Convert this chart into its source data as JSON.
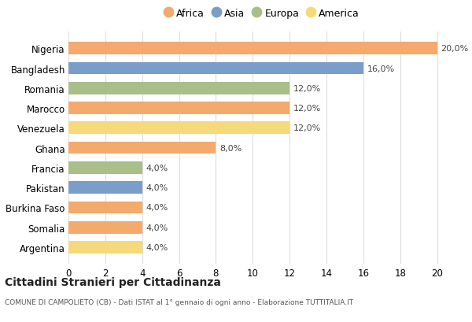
{
  "countries": [
    "Nigeria",
    "Bangladesh",
    "Romania",
    "Marocco",
    "Venezuela",
    "Ghana",
    "Francia",
    "Pakistan",
    "Burkina Faso",
    "Somalia",
    "Argentina"
  ],
  "values": [
    20.0,
    16.0,
    12.0,
    12.0,
    12.0,
    8.0,
    4.0,
    4.0,
    4.0,
    4.0,
    4.0
  ],
  "continents": [
    "Africa",
    "Asia",
    "Europa",
    "Africa",
    "America",
    "Africa",
    "Europa",
    "Asia",
    "Africa",
    "Africa",
    "America"
  ],
  "colors": {
    "Africa": "#F4A96D",
    "Asia": "#7B9DC9",
    "Europa": "#A8BF8A",
    "America": "#F5D97A"
  },
  "legend_order": [
    "Africa",
    "Asia",
    "Europa",
    "America"
  ],
  "title": "Cittadini Stranieri per Cittadinanza",
  "subtitle": "COMUNE DI CAMPOLIETO (CB) - Dati ISTAT al 1° gennaio di ogni anno - Elaborazione TUTTITALIA.IT",
  "xlim": [
    0,
    21
  ],
  "xticks": [
    0,
    2,
    4,
    6,
    8,
    10,
    12,
    14,
    16,
    18,
    20
  ],
  "background_color": "#ffffff",
  "grid_color": "#dddddd",
  "bar_height": 0.62
}
